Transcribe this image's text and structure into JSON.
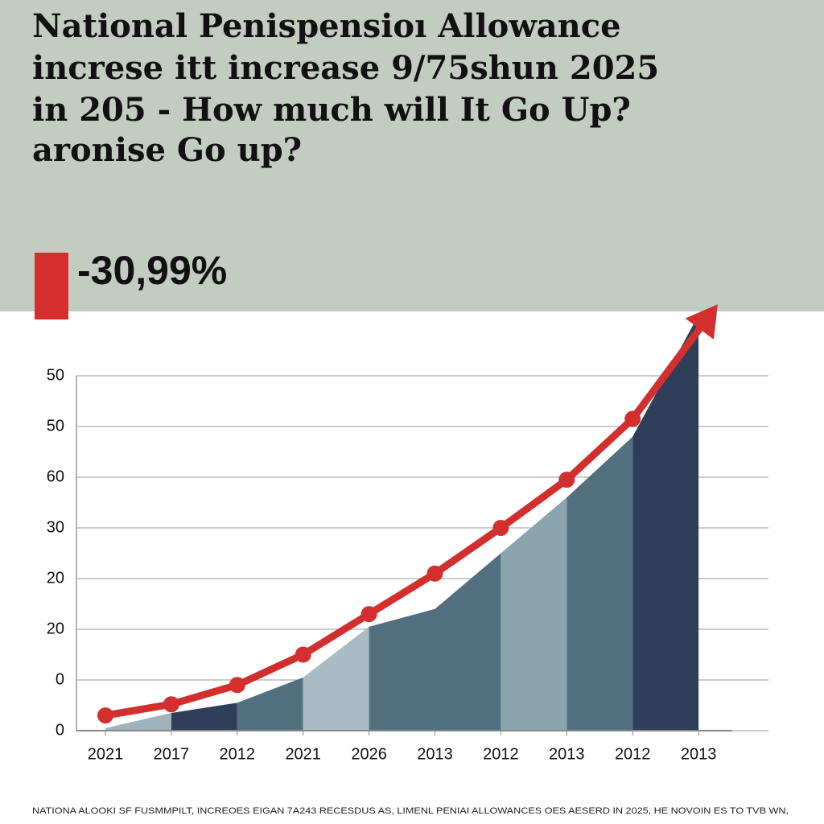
{
  "chart_data": {
    "type": "combo",
    "title_lines": [
      "National Penispensioı Allowance",
      "increse itt increase  9/75shun 2025",
      "in 205  - How much will It  Go Up?",
      "aronise Go up?"
    ],
    "callout": "-30,99%",
    "callout_color": "#d32f2f",
    "header_color": "#c3ccc1",
    "categories": [
      "2021",
      "2017",
      "2012",
      "2021",
      "2026",
      "2013",
      "2012",
      "2013",
      "2012",
      "2013"
    ],
    "ylim": [
      0,
      7
    ],
    "yticks": [
      {
        "value": 0,
        "label": "0"
      },
      {
        "value": 1,
        "label": "0"
      },
      {
        "value": 2,
        "label": "20"
      },
      {
        "value": 3,
        "label": "20"
      },
      {
        "value": 4,
        "label": "30"
      },
      {
        "value": 5,
        "label": "60"
      },
      {
        "value": 6,
        "label": "50"
      },
      {
        "value": 7,
        "label": "50"
      }
    ],
    "grid": true,
    "series": [
      {
        "type": "area",
        "values": [
          0.05,
          0.35,
          0.55,
          1.05,
          2.05,
          2.4,
          3.5,
          4.6,
          5.8,
          8.2
        ],
        "colors": [
          "#9fb3bd",
          "#2f3f5a",
          "#52707f",
          "#a9bcc4",
          "#52707f",
          "#52707f",
          "#8aa5ae",
          "#52707f",
          "#2f3f5a"
        ]
      },
      {
        "type": "line",
        "color": "#d32f2f",
        "values": [
          0.3,
          0.52,
          0.9,
          1.5,
          2.3,
          3.1,
          4.0,
          4.95,
          6.15,
          7.9
        ]
      }
    ],
    "footnote": "NATIONA ALOOKI SF FUSMMPILT, INCREOES EIGAN 7A243 RECESDUS AS, LIMENL PENIAI ALLOWANCES OES AESERD IN 2025, HE NOVOIN ES TO TVB WN,"
  }
}
